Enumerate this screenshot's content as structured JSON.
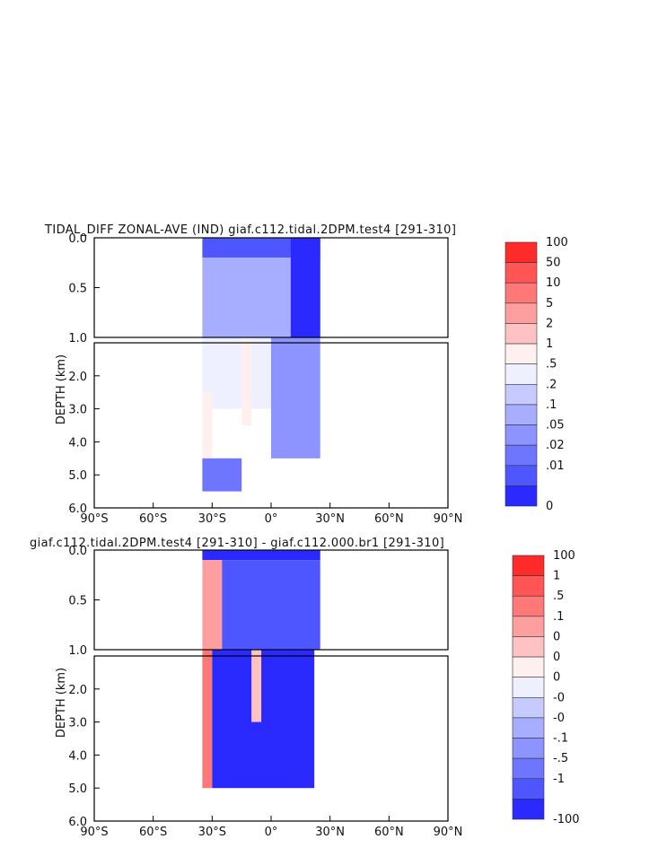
{
  "chart_data": [
    {
      "type": "heatmap",
      "title": "TIDAL_DIFF ZONAL-AVE (IND) giaf.c112.tidal.2DPM.test4 [291-310]",
      "xlabel": "",
      "ylabel": "DEPTH (km)",
      "x_ticks": [
        "90°S",
        "60°S",
        "30°S",
        "0°",
        "30°N",
        "60°N",
        "90°N"
      ],
      "y_ticks_upper": [
        "0.0",
        "0.5",
        "1.0"
      ],
      "y_ticks_lower": [
        "2.0",
        "3.0",
        "4.0",
        "5.0",
        "6.0"
      ],
      "xlim": [
        -90,
        90
      ],
      "ylim": [
        6.0,
        0.0
      ],
      "y_break_km": 1.0,
      "colorbar_labels": [
        "100",
        "50",
        "10",
        "5",
        "2",
        "1",
        ".5",
        ".2",
        ".1",
        ".05",
        ".02",
        ".01",
        "0"
      ],
      "colorbar_colors": [
        "#ff2a2a",
        "#ff5555",
        "#ff7878",
        "#ff9e9e",
        "#ffc2c2",
        "#fff0f0",
        "#eef0ff",
        "#c6caff",
        "#a8aeff",
        "#8d94ff",
        "#6e76ff",
        "#4e57ff",
        "#2a2aff"
      ],
      "regions": [
        {
          "lat": [
            -35,
            25
          ],
          "depth": [
            0.0,
            0.2
          ],
          "value": ".01"
        },
        {
          "lat": [
            -35,
            25
          ],
          "depth": [
            0.2,
            1.0
          ],
          "value": ".1"
        },
        {
          "lat": [
            10,
            25
          ],
          "depth": [
            0.0,
            1.0
          ],
          "value": "0"
        },
        {
          "lat": [
            -35,
            22
          ],
          "depth": [
            1.0,
            3.0
          ],
          "value": ".5"
        },
        {
          "lat": [
            -35,
            -30
          ],
          "depth": [
            2.5,
            4.5
          ],
          "value": "1"
        },
        {
          "lat": [
            -15,
            -10
          ],
          "depth": [
            1.0,
            3.5
          ],
          "value": "1"
        },
        {
          "lat": [
            0,
            25
          ],
          "depth": [
            1.0,
            4.5
          ],
          "value": ".05"
        },
        {
          "lat": [
            -35,
            -15
          ],
          "depth": [
            4.5,
            5.5
          ],
          "value": ".02"
        }
      ]
    },
    {
      "type": "heatmap",
      "title": "giaf.c112.tidal.2DPM.test4 [291-310] - giaf.c112.000.br1 [291-310]",
      "xlabel": "",
      "ylabel": "DEPTH (km)",
      "x_ticks": [
        "90°S",
        "60°S",
        "30°S",
        "0°",
        "30°N",
        "60°N",
        "90°N"
      ],
      "y_ticks_upper": [
        "0.0",
        "0.5",
        "1.0"
      ],
      "y_ticks_lower": [
        "2.0",
        "3.0",
        "4.0",
        "5.0",
        "6.0"
      ],
      "xlim": [
        -90,
        90
      ],
      "ylim": [
        6.0,
        0.0
      ],
      "y_break_km": 1.0,
      "colorbar_labels": [
        "100",
        "1",
        ".5",
        ".1",
        "0",
        "0",
        "0",
        "-0",
        "-0",
        "-.1",
        "-.5",
        "-1",
        "-100"
      ],
      "colorbar_colors": [
        "#ff2a2a",
        "#ff5555",
        "#ff7878",
        "#ff9e9e",
        "#ffc2c2",
        "#fff0f0",
        "#eef0ff",
        "#c6caff",
        "#a8aeff",
        "#8d94ff",
        "#6e76ff",
        "#4e57ff",
        "#2a2aff"
      ],
      "regions": [
        {
          "lat": [
            -35,
            25
          ],
          "depth": [
            0.0,
            0.1
          ],
          "value": "-100"
        },
        {
          "lat": [
            -35,
            -25
          ],
          "depth": [
            0.1,
            1.0
          ],
          "value": ".1"
        },
        {
          "lat": [
            -25,
            25
          ],
          "depth": [
            0.1,
            1.0
          ],
          "value": "-1"
        },
        {
          "lat": [
            -35,
            -30
          ],
          "depth": [
            1.0,
            5.0
          ],
          "value": ".5"
        },
        {
          "lat": [
            -30,
            22
          ],
          "depth": [
            1.0,
            5.0
          ],
          "value": "-100"
        },
        {
          "lat": [
            -10,
            -5
          ],
          "depth": [
            1.0,
            3.0
          ],
          "value": "0"
        }
      ]
    }
  ]
}
